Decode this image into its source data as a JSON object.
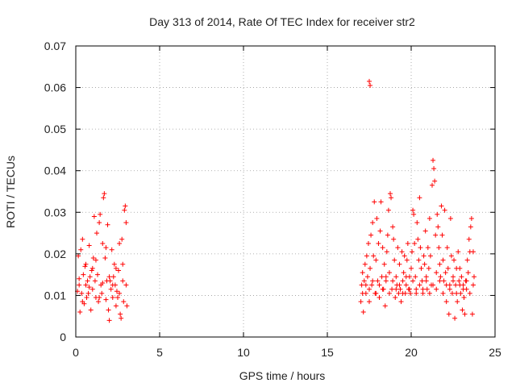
{
  "chart_data": {
    "type": "scatter",
    "title": "Day 313 of 2014, Rate Of TEC Index for receiver str2",
    "xlabel": "GPS time / hours",
    "ylabel": "ROTI / TECUs",
    "xlim": [
      0,
      25
    ],
    "ylim": [
      0,
      0.07
    ],
    "xticks": [
      0,
      5,
      10,
      15,
      20,
      25
    ],
    "xtick_labels": [
      "0",
      "5",
      "10",
      "15",
      "20",
      "25"
    ],
    "yticks": [
      0,
      0.01,
      0.02,
      0.03,
      0.04,
      0.05,
      0.06,
      0.07
    ],
    "ytick_labels": [
      "0",
      "0.01",
      "0.02",
      "0.03",
      "0.04",
      "0.05",
      "0.06",
      "0.07"
    ],
    "grid": true,
    "marker": "+",
    "color": "#ff0000",
    "series": [
      {
        "name": "ROTI",
        "points": [
          [
            0.1,
            0.011
          ],
          [
            0.15,
            0.0195
          ],
          [
            0.2,
            0.0125
          ],
          [
            0.25,
            0.006
          ],
          [
            0.3,
            0.021
          ],
          [
            0.35,
            0.0105
          ],
          [
            0.4,
            0.0235
          ],
          [
            0.45,
            0.015
          ],
          [
            0.5,
            0.008
          ],
          [
            0.55,
            0.017
          ],
          [
            0.6,
            0.0125
          ],
          [
            0.65,
            0.0095
          ],
          [
            0.7,
            0.0135
          ],
          [
            0.75,
            0.0105
          ],
          [
            0.8,
            0.022
          ],
          [
            0.85,
            0.0145
          ],
          [
            0.9,
            0.0065
          ],
          [
            0.95,
            0.016
          ],
          [
            1.0,
            0.0115
          ],
          [
            1.05,
            0.019
          ],
          [
            1.1,
            0.029
          ],
          [
            1.15,
            0.0135
          ],
          [
            1.2,
            0.0095
          ],
          [
            1.25,
            0.025
          ],
          [
            1.3,
            0.015
          ],
          [
            1.35,
            0.0085
          ],
          [
            1.4,
            0.0275
          ],
          [
            1.45,
            0.0295
          ],
          [
            1.5,
            0.0125
          ],
          [
            1.55,
            0.0105
          ],
          [
            1.6,
            0.0225
          ],
          [
            1.65,
            0.0335
          ],
          [
            1.7,
            0.0345
          ],
          [
            1.75,
            0.019
          ],
          [
            1.8,
            0.009
          ],
          [
            1.85,
            0.0135
          ],
          [
            1.9,
            0.027
          ],
          [
            1.95,
            0.0065
          ],
          [
            2.0,
            0.004
          ],
          [
            2.05,
            0.0135
          ],
          [
            2.1,
            0.0115
          ],
          [
            2.15,
            0.021
          ],
          [
            2.2,
            0.0095
          ],
          [
            2.25,
            0.0145
          ],
          [
            2.3,
            0.0175
          ],
          [
            2.35,
            0.0125
          ],
          [
            2.4,
            0.0075
          ],
          [
            2.45,
            0.011
          ],
          [
            2.5,
            0.0095
          ],
          [
            2.55,
            0.016
          ],
          [
            2.6,
            0.0225
          ],
          [
            2.65,
            0.0055
          ],
          [
            2.7,
            0.0045
          ],
          [
            2.75,
            0.0235
          ],
          [
            2.8,
            0.0135
          ],
          [
            2.85,
            0.0085
          ],
          [
            2.9,
            0.0305
          ],
          [
            2.95,
            0.0315
          ],
          [
            3.0,
            0.0275
          ],
          [
            3.05,
            0.0075
          ],
          [
            0.2,
            0.014
          ],
          [
            0.4,
            0.0085
          ],
          [
            0.6,
            0.0175
          ],
          [
            0.8,
            0.012
          ],
          [
            1.0,
            0.0165
          ],
          [
            1.2,
            0.0185
          ],
          [
            1.4,
            0.0095
          ],
          [
            1.6,
            0.013
          ],
          [
            1.8,
            0.0215
          ],
          [
            2.0,
            0.0145
          ],
          [
            2.2,
            0.0125
          ],
          [
            2.4,
            0.0165
          ],
          [
            2.6,
            0.0105
          ],
          [
            2.8,
            0.0175
          ],
          [
            3.0,
            0.0125
          ],
          [
            17.5,
            0.0615
          ],
          [
            17.55,
            0.0605
          ],
          [
            17.0,
            0.0085
          ],
          [
            17.05,
            0.0125
          ],
          [
            17.1,
            0.0155
          ],
          [
            17.15,
            0.006
          ],
          [
            17.2,
            0.0135
          ],
          [
            17.25,
            0.0175
          ],
          [
            17.3,
            0.0105
          ],
          [
            17.35,
            0.0195
          ],
          [
            17.4,
            0.0145
          ],
          [
            17.45,
            0.0225
          ],
          [
            17.5,
            0.0085
          ],
          [
            17.55,
            0.0165
          ],
          [
            17.6,
            0.0245
          ],
          [
            17.65,
            0.0125
          ],
          [
            17.7,
            0.0275
          ],
          [
            17.75,
            0.0195
          ],
          [
            17.8,
            0.0325
          ],
          [
            17.85,
            0.0105
          ],
          [
            17.9,
            0.0185
          ],
          [
            17.95,
            0.0285
          ],
          [
            18.0,
            0.0135
          ],
          [
            18.05,
            0.0225
          ],
          [
            18.1,
            0.0095
          ],
          [
            18.15,
            0.0255
          ],
          [
            18.2,
            0.0325
          ],
          [
            18.25,
            0.0145
          ],
          [
            18.3,
            0.0215
          ],
          [
            18.35,
            0.0115
          ],
          [
            18.4,
            0.0175
          ],
          [
            18.45,
            0.0075
          ],
          [
            18.5,
            0.0135
          ],
          [
            18.55,
            0.0205
          ],
          [
            18.6,
            0.0245
          ],
          [
            18.65,
            0.0305
          ],
          [
            18.7,
            0.0155
          ],
          [
            18.75,
            0.0345
          ],
          [
            18.8,
            0.0335
          ],
          [
            18.85,
            0.0115
          ],
          [
            18.9,
            0.0265
          ],
          [
            18.95,
            0.0235
          ],
          [
            19.0,
            0.0185
          ],
          [
            19.05,
            0.0095
          ],
          [
            19.1,
            0.0145
          ],
          [
            19.15,
            0.0125
          ],
          [
            19.2,
            0.0215
          ],
          [
            19.25,
            0.0105
          ],
          [
            19.3,
            0.0175
          ],
          [
            19.35,
            0.0115
          ],
          [
            19.4,
            0.0085
          ],
          [
            19.45,
            0.0205
          ],
          [
            19.5,
            0.0135
          ],
          [
            19.55,
            0.0155
          ],
          [
            19.6,
            0.0195
          ],
          [
            19.65,
            0.0105
          ],
          [
            19.7,
            0.0125
          ],
          [
            19.75,
            0.0185
          ],
          [
            19.8,
            0.0225
          ],
          [
            19.85,
            0.0115
          ],
          [
            19.9,
            0.0145
          ],
          [
            19.95,
            0.0105
          ],
          [
            20.0,
            0.0165
          ],
          [
            20.05,
            0.0205
          ],
          [
            20.1,
            0.0305
          ],
          [
            20.15,
            0.0295
          ],
          [
            20.2,
            0.0225
          ],
          [
            20.25,
            0.0145
          ],
          [
            20.3,
            0.0115
          ],
          [
            20.35,
            0.0275
          ],
          [
            20.4,
            0.0235
          ],
          [
            20.45,
            0.0185
          ],
          [
            20.5,
            0.0335
          ],
          [
            20.55,
            0.0215
          ],
          [
            20.6,
            0.0165
          ],
          [
            20.65,
            0.0135
          ],
          [
            20.7,
            0.0105
          ],
          [
            20.75,
            0.0195
          ],
          [
            20.8,
            0.0175
          ],
          [
            20.85,
            0.0255
          ],
          [
            20.9,
            0.0145
          ],
          [
            20.95,
            0.0115
          ],
          [
            21.0,
            0.0215
          ],
          [
            21.05,
            0.0165
          ],
          [
            21.1,
            0.0285
          ],
          [
            21.15,
            0.0195
          ],
          [
            21.2,
            0.0125
          ],
          [
            21.25,
            0.0365
          ],
          [
            21.3,
            0.0425
          ],
          [
            21.35,
            0.0405
          ],
          [
            21.4,
            0.0375
          ],
          [
            21.45,
            0.0245
          ],
          [
            21.5,
            0.0155
          ],
          [
            21.55,
            0.0295
          ],
          [
            21.6,
            0.0265
          ],
          [
            21.65,
            0.0215
          ],
          [
            21.7,
            0.0175
          ],
          [
            21.75,
            0.0145
          ],
          [
            21.8,
            0.0315
          ],
          [
            21.85,
            0.0245
          ],
          [
            21.9,
            0.0185
          ],
          [
            21.95,
            0.0135
          ],
          [
            22.0,
            0.0305
          ],
          [
            22.05,
            0.0155
          ],
          [
            22.1,
            0.0085
          ],
          [
            22.15,
            0.0215
          ],
          [
            22.2,
            0.0165
          ],
          [
            22.25,
            0.0055
          ],
          [
            22.3,
            0.0125
          ],
          [
            22.35,
            0.0285
          ],
          [
            22.4,
            0.0195
          ],
          [
            22.45,
            0.0105
          ],
          [
            22.5,
            0.0145
          ],
          [
            22.55,
            0.0185
          ],
          [
            22.6,
            0.0045
          ],
          [
            22.65,
            0.0125
          ],
          [
            22.7,
            0.0165
          ],
          [
            22.75,
            0.0085
          ],
          [
            22.8,
            0.0205
          ],
          [
            22.85,
            0.0135
          ],
          [
            22.9,
            0.0165
          ],
          [
            22.95,
            0.0105
          ],
          [
            23.0,
            0.0145
          ],
          [
            23.05,
            0.0065
          ],
          [
            23.1,
            0.0125
          ],
          [
            23.15,
            0.0095
          ],
          [
            23.2,
            0.0055
          ],
          [
            23.25,
            0.0135
          ],
          [
            23.3,
            0.0115
          ],
          [
            23.35,
            0.0185
          ],
          [
            23.4,
            0.0155
          ],
          [
            23.45,
            0.0235
          ],
          [
            23.5,
            0.0205
          ],
          [
            23.55,
            0.0265
          ],
          [
            23.6,
            0.0285
          ],
          [
            23.65,
            0.0055
          ],
          [
            23.7,
            0.0205
          ],
          [
            23.75,
            0.0145
          ],
          [
            17.1,
            0.0105
          ],
          [
            17.3,
            0.0125
          ],
          [
            17.5,
            0.0115
          ],
          [
            17.7,
            0.0135
          ],
          [
            17.9,
            0.0105
          ],
          [
            18.1,
            0.0125
          ],
          [
            18.3,
            0.0115
          ],
          [
            18.5,
            0.0145
          ],
          [
            18.7,
            0.0105
          ],
          [
            18.9,
            0.0135
          ],
          [
            19.1,
            0.0115
          ],
          [
            19.3,
            0.0125
          ],
          [
            19.5,
            0.0105
          ],
          [
            19.7,
            0.0145
          ],
          [
            19.9,
            0.0115
          ],
          [
            20.1,
            0.0135
          ],
          [
            20.3,
            0.0105
          ],
          [
            20.5,
            0.0125
          ],
          [
            20.7,
            0.0115
          ],
          [
            20.9,
            0.0135
          ],
          [
            21.1,
            0.0105
          ],
          [
            21.3,
            0.0125
          ],
          [
            21.5,
            0.0115
          ],
          [
            21.7,
            0.0135
          ],
          [
            21.9,
            0.0105
          ],
          [
            22.1,
            0.0125
          ],
          [
            22.3,
            0.0115
          ],
          [
            22.5,
            0.0135
          ],
          [
            22.7,
            0.0105
          ],
          [
            22.9,
            0.0125
          ],
          [
            23.1,
            0.0115
          ],
          [
            23.3,
            0.0135
          ],
          [
            23.5,
            0.0105
          ],
          [
            23.7,
            0.0125
          ]
        ]
      }
    ]
  }
}
